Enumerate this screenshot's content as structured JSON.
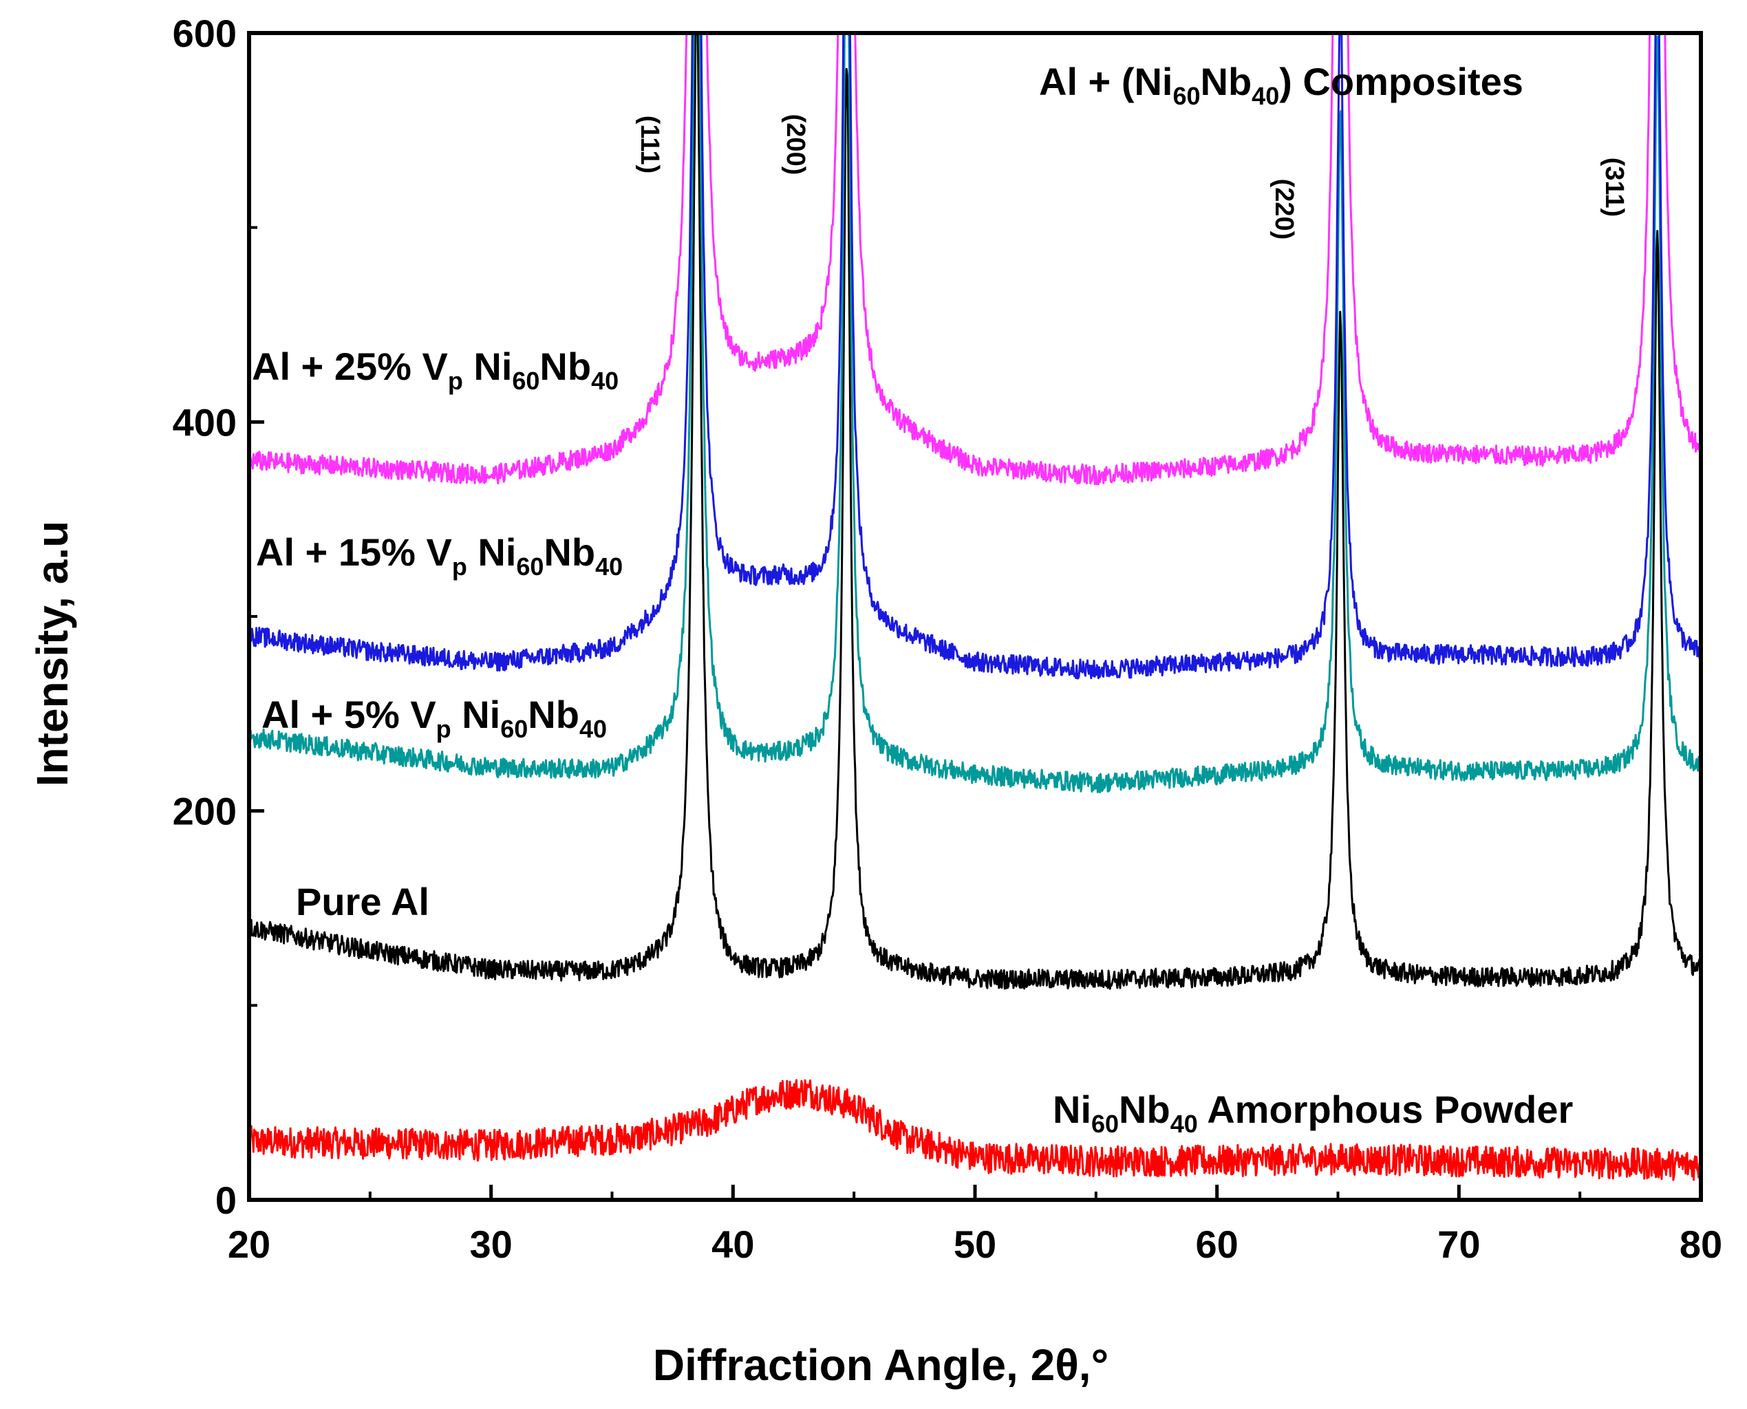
{
  "chart_data": {
    "type": "line",
    "title": "",
    "xlabel": "Diffraction Angle, 2θ,°",
    "ylabel": "Intensity, a.u",
    "xlim": [
      20,
      80
    ],
    "ylim": [
      0,
      600
    ],
    "x_ticks": [
      20,
      30,
      40,
      50,
      60,
      70,
      80
    ],
    "x_tick_labels": [
      "20",
      "30",
      "40",
      "50",
      "60",
      "70",
      "80"
    ],
    "y_ticks": [
      0,
      200,
      400,
      600
    ],
    "y_tick_labels": [
      "0",
      "200",
      "400",
      "600"
    ],
    "y_minor_ticks": [
      100,
      300,
      500
    ],
    "annotation_title": {
      "prefix": "Al + (Ni",
      "sub1": "60",
      "mid": "Nb",
      "sub2": "40",
      "suffix": ")  Composites"
    },
    "peak_labels": [
      {
        "text": "(111)",
        "x": 38.5
      },
      {
        "text": "(200)",
        "x": 44.7
      },
      {
        "text": "(220)",
        "x": 65.1
      },
      {
        "text": "(311)",
        "x": 78.2
      }
    ],
    "series": [
      {
        "name": "Ni60Nb40 Amorphous Powder",
        "color": "#ff0000",
        "label": {
          "p1": "Ni",
          "s1": "60",
          "p2": "Nb",
          "s2": "40",
          "p3": " Amorphous Powder"
        },
        "baseline": [
          [
            20,
            30
          ],
          [
            30,
            28
          ],
          [
            36,
            32
          ],
          [
            39,
            40
          ],
          [
            41,
            52
          ],
          [
            43,
            56
          ],
          [
            45,
            48
          ],
          [
            47,
            32
          ],
          [
            50,
            22
          ],
          [
            55,
            20
          ],
          [
            60,
            20
          ],
          [
            65,
            21
          ],
          [
            70,
            20
          ],
          [
            75,
            19
          ],
          [
            80,
            18
          ]
        ],
        "peaks": [],
        "noise": 8
      },
      {
        "name": "Pure Al",
        "color": "#000000",
        "label": {
          "p1": "Pure Al"
        },
        "baseline": [
          [
            20,
            140
          ],
          [
            25,
            128
          ],
          [
            30,
            118
          ],
          [
            35,
            116
          ],
          [
            37,
            120
          ],
          [
            40,
            114
          ],
          [
            43,
            116
          ],
          [
            46,
            118
          ],
          [
            50,
            113
          ],
          [
            55,
            113
          ],
          [
            60,
            114
          ],
          [
            65,
            116
          ],
          [
            70,
            114
          ],
          [
            75,
            114
          ],
          [
            80,
            115
          ]
        ],
        "peaks": [
          [
            38.5,
            500,
            0.22
          ],
          [
            44.7,
            470,
            0.18
          ],
          [
            65.1,
            340,
            0.18
          ],
          [
            78.2,
            380,
            0.18
          ]
        ],
        "noise": 5
      },
      {
        "name": "Al + 5% Vp Ni60Nb40",
        "color": "#009999",
        "label": {
          "p1": "Al + 5% V",
          "s0": "p",
          "p2": " Ni",
          "s1": "60",
          "p3": "Nb",
          "s2": "40"
        },
        "baseline": [
          [
            20,
            238
          ],
          [
            25,
            230
          ],
          [
            30,
            222
          ],
          [
            35,
            220
          ],
          [
            37,
            230
          ],
          [
            40,
            224
          ],
          [
            43,
            228
          ],
          [
            46,
            226
          ],
          [
            50,
            218
          ],
          [
            55,
            214
          ],
          [
            60,
            218
          ],
          [
            65,
            222
          ],
          [
            70,
            220
          ],
          [
            75,
            220
          ],
          [
            80,
            220
          ]
        ],
        "peaks": [
          [
            38.5,
            500,
            0.22
          ],
          [
            44.7,
            470,
            0.18
          ],
          [
            65.1,
            340,
            0.18
          ],
          [
            78.2,
            380,
            0.18
          ]
        ],
        "noise": 5
      },
      {
        "name": "Al + 15% Vp Ni60Nb40",
        "color": "#1a1adf",
        "label": {
          "p1": "Al + 15% V",
          "s0": "p",
          "p2": " Ni",
          "s1": "60",
          "p3": "Nb",
          "s2": "40"
        },
        "baseline": [
          [
            20,
            290
          ],
          [
            25,
            282
          ],
          [
            30,
            276
          ],
          [
            35,
            282
          ],
          [
            37,
            298
          ],
          [
            40,
            314
          ],
          [
            42,
            318
          ],
          [
            44,
            312
          ],
          [
            46,
            294
          ],
          [
            50,
            276
          ],
          [
            55,
            272
          ],
          [
            60,
            276
          ],
          [
            65,
            278
          ],
          [
            70,
            280
          ],
          [
            75,
            278
          ],
          [
            80,
            278
          ]
        ],
        "peaks": [
          [
            38.5,
            500,
            0.22
          ],
          [
            44.7,
            470,
            0.18
          ],
          [
            65.1,
            340,
            0.18
          ],
          [
            78.2,
            380,
            0.18
          ]
        ],
        "noise": 5
      },
      {
        "name": "Al + 25% Vp Ni60Nb40",
        "color": "#ff33ff",
        "label": {
          "p1": "Al + 25% V",
          "s0": "p",
          "p2": " Ni",
          "s1": "60",
          "p3": "Nb",
          "s2": "40"
        },
        "baseline": [
          [
            20,
            380
          ],
          [
            25,
            376
          ],
          [
            30,
            372
          ],
          [
            35,
            382
          ],
          [
            37,
            398
          ],
          [
            40,
            418
          ],
          [
            42,
            426
          ],
          [
            44,
            426
          ],
          [
            46,
            400
          ],
          [
            50,
            376
          ],
          [
            55,
            372
          ],
          [
            60,
            376
          ],
          [
            65,
            380
          ],
          [
            70,
            382
          ],
          [
            75,
            380
          ],
          [
            80,
            378
          ]
        ],
        "peaks": [
          [
            38.5,
            900,
            0.22
          ],
          [
            44.7,
            900,
            0.18
          ],
          [
            65.1,
            900,
            0.18
          ],
          [
            78.2,
            900,
            0.18
          ]
        ],
        "noise": 5
      }
    ]
  }
}
